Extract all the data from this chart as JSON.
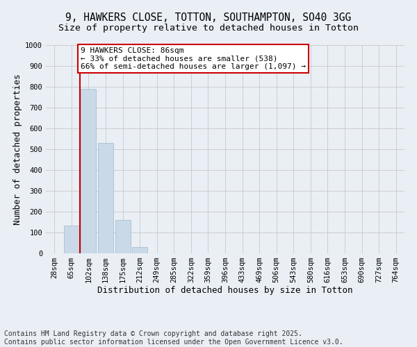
{
  "title_line1": "9, HAWKERS CLOSE, TOTTON, SOUTHAMPTON, SO40 3GG",
  "title_line2": "Size of property relative to detached houses in Totton",
  "xlabel": "Distribution of detached houses by size in Totton",
  "ylabel": "Number of detached properties",
  "categories": [
    "28sqm",
    "65sqm",
    "102sqm",
    "138sqm",
    "175sqm",
    "212sqm",
    "249sqm",
    "285sqm",
    "322sqm",
    "359sqm",
    "396sqm",
    "433sqm",
    "469sqm",
    "506sqm",
    "543sqm",
    "580sqm",
    "616sqm",
    "653sqm",
    "690sqm",
    "727sqm",
    "764sqm"
  ],
  "values": [
    0,
    135,
    790,
    530,
    160,
    30,
    0,
    0,
    0,
    0,
    0,
    0,
    0,
    0,
    0,
    0,
    0,
    0,
    0,
    0,
    0
  ],
  "bar_color": "#c9d9e8",
  "bar_edge_color": "#a0b8cc",
  "grid_color": "#c8c8c8",
  "background_color": "#eaeff5",
  "vline_x": 1.5,
  "vline_color": "#cc0000",
  "annotation_text": "9 HAWKERS CLOSE: 86sqm\n← 33% of detached houses are smaller (538)\n66% of semi-detached houses are larger (1,097) →",
  "annotation_box_color": "#ffffff",
  "annotation_edge_color": "#cc0000",
  "ylim": [
    0,
    1000
  ],
  "yticks": [
    0,
    100,
    200,
    300,
    400,
    500,
    600,
    700,
    800,
    900,
    1000
  ],
  "footnote_line1": "Contains HM Land Registry data © Crown copyright and database right 2025.",
  "footnote_line2": "Contains public sector information licensed under the Open Government Licence v3.0.",
  "title_fontsize": 10.5,
  "subtitle_fontsize": 9.5,
  "axis_label_fontsize": 9,
  "tick_fontsize": 7.5,
  "annotation_fontsize": 8,
  "footnote_fontsize": 7
}
